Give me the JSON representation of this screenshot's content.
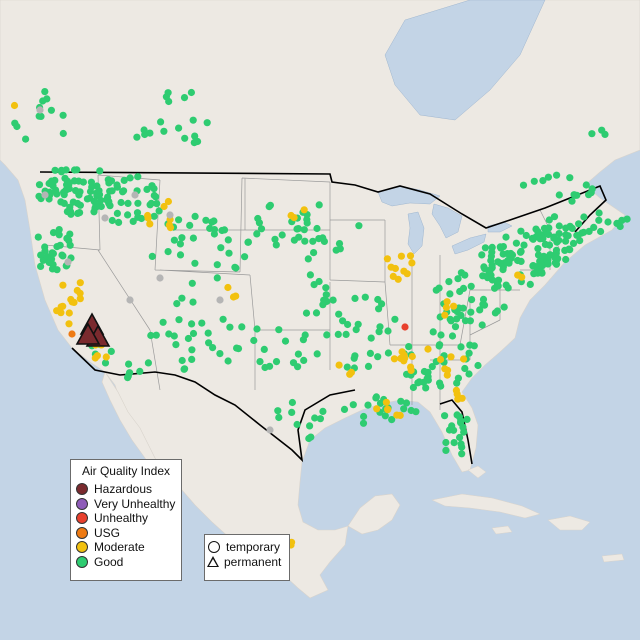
{
  "legend": {
    "title": "Air Quality Index",
    "items": [
      {
        "label": "Hazardous",
        "color": "#7a2a2e"
      },
      {
        "label": "Very Unhealthy",
        "color": "#8e5bb8"
      },
      {
        "label": "Unhealthy",
        "color": "#e8402d"
      },
      {
        "label": "USG",
        "color": "#ee7a12"
      },
      {
        "label": "Moderate",
        "color": "#f2c10f"
      },
      {
        "label": "Good",
        "color": "#2ecc71"
      }
    ]
  },
  "shape_legend": {
    "items": [
      {
        "label": "temporary",
        "shape": "circle"
      },
      {
        "label": "permanent",
        "shape": "triangle"
      }
    ]
  },
  "colors": {
    "water": "#c3d4e6",
    "land": "#ede9e3",
    "us_border": "#000000",
    "state_lines": "#9a9a9a",
    "unknown_sensor": "#b5b5b5"
  }
}
